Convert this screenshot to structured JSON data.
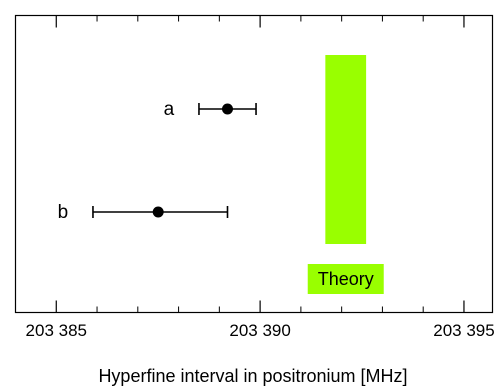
{
  "chart_data": {
    "type": "scatter",
    "xlabel": "Hyperfine interval in positronium [MHz]",
    "xlim": [
      203384.0,
      203395.7
    ],
    "xticks": [
      203385,
      203390,
      203395
    ],
    "xtick_labels": [
      "203 385",
      "203 390",
      "203 395"
    ],
    "minor_xticks": [
      203386,
      203387,
      203388,
      203389,
      203391,
      203392,
      203393,
      203394
    ],
    "points": [
      {
        "label": "a",
        "x": 203389.2,
        "xerr_low": 203388.5,
        "xerr_high": 203389.9,
        "row": 1
      },
      {
        "label": "b",
        "x": 203387.5,
        "xerr_low": 203385.9,
        "xerr_high": 203389.2,
        "row": 2
      }
    ],
    "theory_band": {
      "label": "Theory",
      "x_min": 203391.6,
      "x_max": 203392.6,
      "color": "#99ff00"
    },
    "grid": false,
    "legend": "none"
  }
}
